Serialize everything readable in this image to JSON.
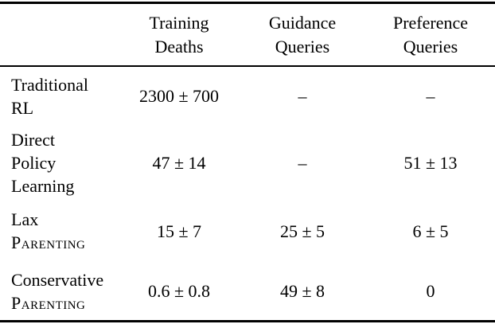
{
  "table": {
    "headers": [
      {
        "line1": "Training",
        "line2": "Deaths"
      },
      {
        "line1": "Guidance",
        "line2": "Queries"
      },
      {
        "line1": "Preference",
        "line2": "Queries"
      }
    ],
    "rows": [
      {
        "label_line1": "Traditional",
        "label_line2": "RL",
        "training_deaths": "2300 ± 700",
        "guidance_queries": "–",
        "preference_queries": "–"
      },
      {
        "label_line1": "Direct",
        "label_line2": "Policy",
        "label_line3": "Learning",
        "training_deaths": "47 ± 14",
        "guidance_queries": "–",
        "preference_queries": "51 ± 13"
      },
      {
        "label_line1": "Lax",
        "label_smallcaps": "Parenting",
        "training_deaths": "15 ± 7",
        "guidance_queries": "25 ± 5",
        "preference_queries": "6 ± 5"
      },
      {
        "label_line1": "Conservative",
        "label_smallcaps": "Parenting",
        "training_deaths": "0.6 ± 0.8",
        "guidance_queries": "49 ± 8",
        "preference_queries": "0"
      }
    ]
  },
  "colors": {
    "text": "#000000",
    "background": "#ffffff",
    "rule": "#000000"
  }
}
